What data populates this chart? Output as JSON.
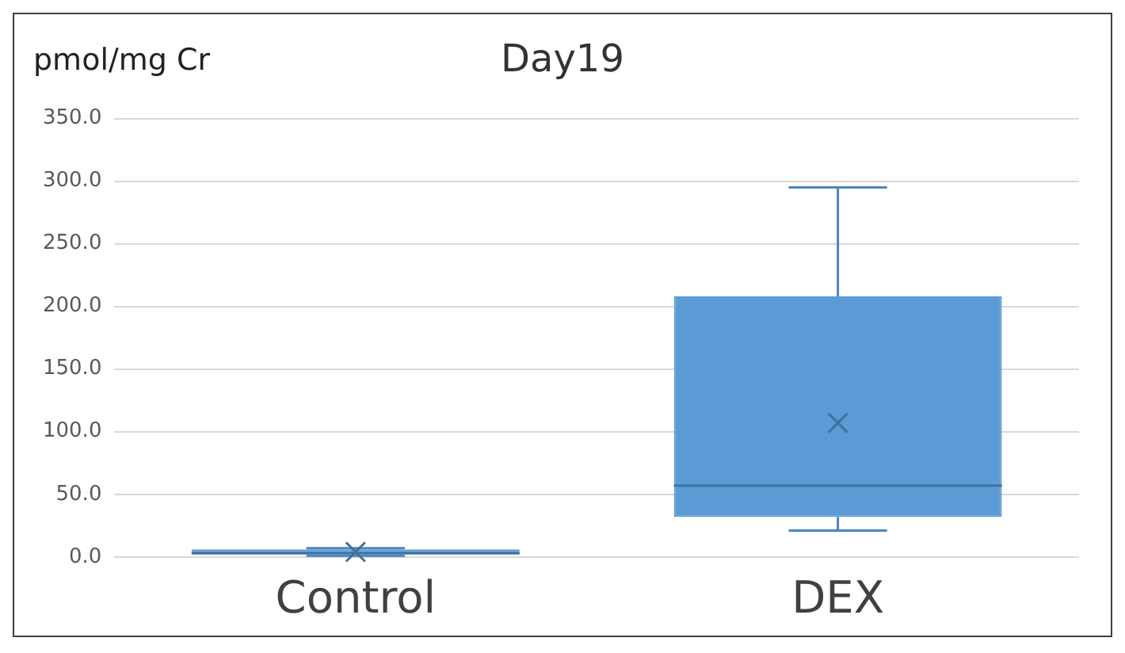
{
  "chart_data": {
    "type": "box",
    "title": "Day19",
    "ylabel": "pmol/mg Cr",
    "categories": [
      "Control",
      "DEX"
    ],
    "series": [
      {
        "color": "#5b9bd5",
        "boxes": [
          {
            "low": 1,
            "q1": 2,
            "median": 3,
            "q3": 6,
            "high": 7,
            "mean": 4
          },
          {
            "low": 21,
            "q1": 32,
            "median": 57,
            "q3": 208,
            "high": 295,
            "mean": 107
          }
        ]
      }
    ],
    "ylim": [
      0,
      350
    ],
    "yticks": [
      {
        "value": 0,
        "label": "0.0"
      },
      {
        "value": 50,
        "label": "50.0"
      },
      {
        "value": 100,
        "label": "100.0"
      },
      {
        "value": 150,
        "label": "150.0"
      },
      {
        "value": 200,
        "label": "200.0"
      },
      {
        "value": 250,
        "label": "250.0"
      },
      {
        "value": 300,
        "label": "300.0"
      },
      {
        "value": 350,
        "label": "350.0"
      }
    ],
    "grid": "y",
    "legend": false
  }
}
